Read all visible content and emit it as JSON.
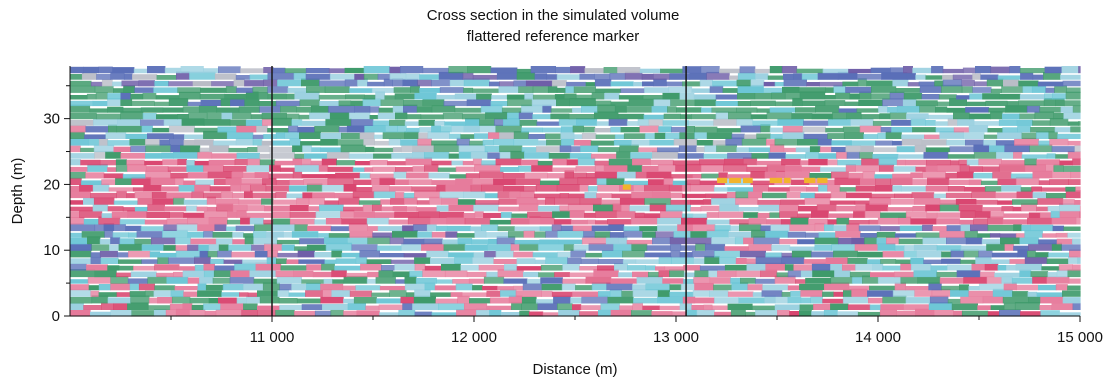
{
  "chart_data": {
    "type": "heatmap",
    "title": "Cross section in the simulated volume",
    "subtitle": "flattered reference marker",
    "xlabel": "Distance (m)",
    "ylabel": "Depth (m)",
    "xlim": [
      10000,
      15000
    ],
    "ylim": [
      0,
      38
    ],
    "x_ticks": [
      11000,
      12000,
      13000,
      14000,
      15000
    ],
    "x_tick_labels": [
      "11 000",
      "12 000",
      "13 000",
      "14 000",
      "15 000"
    ],
    "y_ticks": [
      0,
      10,
      20,
      30
    ],
    "y_tick_labels": [
      "0",
      "10",
      "20",
      "30"
    ],
    "well_markers_x": [
      11000,
      13050
    ],
    "bands": [
      {
        "depth_range": [
          35,
          38
        ],
        "dominant": "blue-purple"
      },
      {
        "depth_range": [
          30,
          35
        ],
        "dominant": "green"
      },
      {
        "depth_range": [
          24,
          30
        ],
        "dominant": "mixed green-cyan-blue"
      },
      {
        "depth_range": [
          14,
          24
        ],
        "dominant": "pink-red"
      },
      {
        "depth_range": [
          8,
          14
        ],
        "dominant": "mixed blue-cyan"
      },
      {
        "depth_range": [
          0,
          8
        ],
        "dominant": "mixed green-pink"
      }
    ],
    "highlights": [
      {
        "x_range": [
          13150,
          13750
        ],
        "depth": 20.5,
        "color": "orange"
      },
      {
        "x_range": [
          12700,
          12850
        ],
        "depth": 19.5,
        "color": "orange"
      }
    ],
    "colors": {
      "blue": "#5a6fb8",
      "purple": "#6c5ba6",
      "green": "#3e9a6a",
      "cyan": "#6cc6d6",
      "light_blue": "#9ad0e0",
      "pink": "#e6799a",
      "red": "#d9456f",
      "orange": "#f2b42c",
      "gray": "#b9bcc6"
    }
  }
}
